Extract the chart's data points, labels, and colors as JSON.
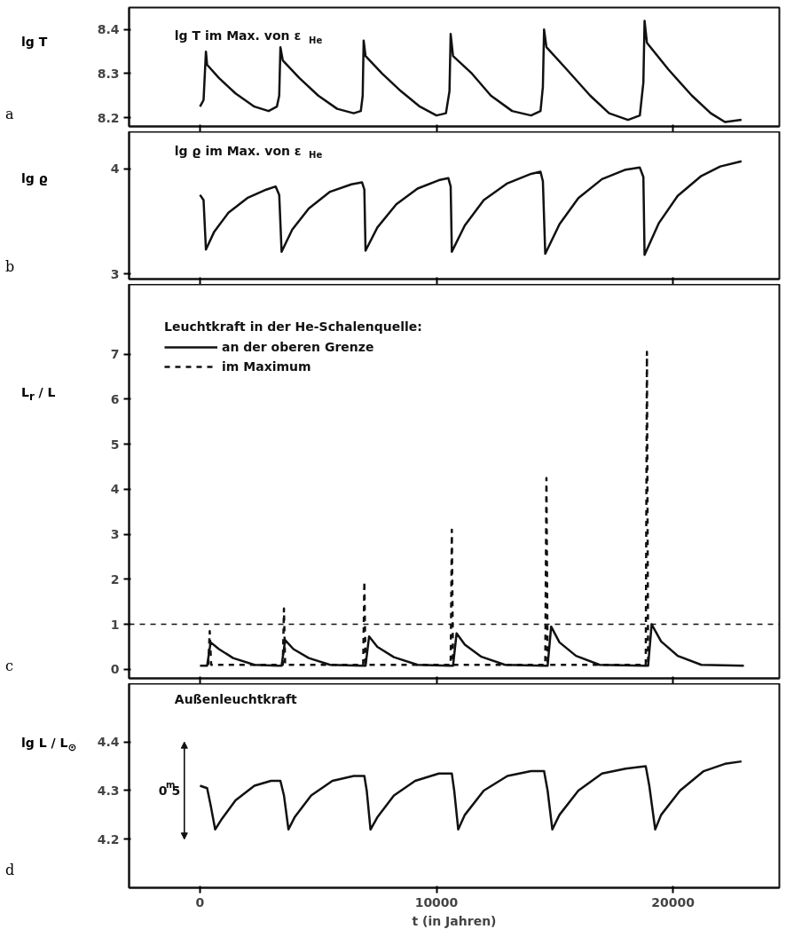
{
  "chart_data": [
    {
      "type": "line",
      "title": "lg T im Max. von ε$_{He}$",
      "ylabel": "lg T",
      "annotations": [
        "a"
      ],
      "xlim": [
        -3000,
        24500
      ],
      "ylim": [
        8.18,
        8.45
      ],
      "xticks": [
        0,
        10000,
        20000
      ],
      "yticks": [
        8.2,
        8.3,
        8.4
      ],
      "tick_labels": "y",
      "series": [
        {
          "color": "#111111",
          "x": [
            0,
            150,
            250,
            300,
            800,
            1500,
            2300,
            2900,
            3250,
            3350,
            3400,
            3500,
            4200,
            5000,
            5800,
            6500,
            6800,
            6880,
            6920,
            7000,
            7700,
            8500,
            9300,
            10000,
            10400,
            10550,
            10600,
            10700,
            11500,
            12300,
            13200,
            14000,
            14400,
            14500,
            14550,
            14650,
            15500,
            16500,
            17300,
            18100,
            18600,
            18750,
            18800,
            18900,
            19800,
            20800,
            21600,
            22200,
            22900
          ],
          "values": [
            8.225,
            8.24,
            8.35,
            8.32,
            8.29,
            8.255,
            8.225,
            8.215,
            8.225,
            8.25,
            8.36,
            8.33,
            8.29,
            8.25,
            8.22,
            8.21,
            8.215,
            8.25,
            8.375,
            8.34,
            8.3,
            8.26,
            8.225,
            8.205,
            8.21,
            8.26,
            8.39,
            8.34,
            8.3,
            8.25,
            8.215,
            8.205,
            8.215,
            8.27,
            8.4,
            8.36,
            8.31,
            8.25,
            8.21,
            8.195,
            8.205,
            8.28,
            8.42,
            8.37,
            8.31,
            8.25,
            8.21,
            8.19,
            8.195
          ]
        }
      ]
    },
    {
      "type": "line",
      "title": "lg ϱ im Max. von ε$_{He}$",
      "ylabel": "lg ϱ",
      "annotations": [
        "b"
      ],
      "xlim": [
        -3000,
        24500
      ],
      "ylim": [
        2.95,
        4.35
      ],
      "xticks": [
        0,
        10000,
        20000
      ],
      "yticks": [
        3,
        4
      ],
      "tick_labels": "y",
      "series": [
        {
          "color": "#111111",
          "x": [
            0,
            150,
            250,
            600,
            1200,
            2000,
            2800,
            3200,
            3350,
            3450,
            3900,
            4600,
            5500,
            6400,
            6850,
            6950,
            7000,
            7500,
            8300,
            9200,
            10100,
            10500,
            10600,
            10650,
            11200,
            12000,
            13000,
            14000,
            14400,
            14500,
            14600,
            15200,
            16000,
            17000,
            18000,
            18600,
            18750,
            18800,
            19400,
            20200,
            21200,
            22000,
            22900
          ],
          "values": [
            3.75,
            3.7,
            3.23,
            3.4,
            3.58,
            3.72,
            3.8,
            3.83,
            3.75,
            3.21,
            3.42,
            3.62,
            3.78,
            3.85,
            3.87,
            3.8,
            3.22,
            3.44,
            3.66,
            3.81,
            3.89,
            3.91,
            3.83,
            3.21,
            3.46,
            3.7,
            3.86,
            3.95,
            3.97,
            3.88,
            3.19,
            3.47,
            3.72,
            3.9,
            3.99,
            4.01,
            3.92,
            3.18,
            3.48,
            3.74,
            3.93,
            4.02,
            4.07
          ]
        }
      ]
    },
    {
      "type": "line",
      "ylabel": "L$_{r}$ / L",
      "annotations": [
        "c"
      ],
      "legend_title": "Leuchtkraft in der He-Schalenquelle:",
      "legend": "top left",
      "xlim": [
        -3000,
        24500
      ],
      "ylim": [
        -0.2,
        8.55
      ],
      "xticks": [
        0,
        10000,
        20000
      ],
      "yticks": [
        0,
        1,
        2,
        3,
        4,
        5,
        6,
        7
      ],
      "tick_labels": "y",
      "ref_lines": [
        {
          "axis": "y",
          "value": 1,
          "line_style": "dashed",
          "color": "#111111"
        }
      ],
      "series": [
        {
          "name": "an der oberen Grenze",
          "color": "#111111",
          "line_style": "solid",
          "x": [
            0,
            300,
            450,
            800,
            1400,
            2300,
            3300,
            3450,
            3600,
            3950,
            4600,
            5500,
            6850,
            7000,
            7150,
            7500,
            8200,
            9200,
            10550,
            10700,
            10850,
            11200,
            11900,
            12900,
            14550,
            14700,
            14850,
            15200,
            15900,
            16900,
            18800,
            18950,
            19100,
            19500,
            20200,
            21200,
            23000
          ],
          "values": [
            0.08,
            0.08,
            0.6,
            0.45,
            0.25,
            0.1,
            0.08,
            0.08,
            0.65,
            0.45,
            0.25,
            0.1,
            0.08,
            0.08,
            0.73,
            0.5,
            0.27,
            0.1,
            0.08,
            0.08,
            0.8,
            0.55,
            0.28,
            0.1,
            0.08,
            0.08,
            0.95,
            0.6,
            0.3,
            0.1,
            0.08,
            0.08,
            1.0,
            0.62,
            0.3,
            0.1,
            0.08
          ]
        },
        {
          "name": "im Maximum",
          "color": "#111111",
          "line_style": "dashed",
          "x": [
            350,
            410,
            470,
            3500,
            3550,
            3600,
            6900,
            6950,
            7000,
            10600,
            10650,
            10700,
            14600,
            14650,
            14700,
            18850,
            18900,
            18950
          ],
          "values": [
            0.1,
            0.85,
            0.1,
            0.1,
            1.35,
            0.1,
            0.1,
            1.95,
            0.1,
            0.1,
            3.1,
            0.1,
            0.1,
            4.25,
            0.1,
            0.1,
            7.05,
            0.1
          ]
        }
      ]
    },
    {
      "type": "line",
      "title": "Außenleuchtkraft",
      "ylabel": "lg L / L$_{⊙}$",
      "xlabel": "t (in Jahren)",
      "xlim": [
        -3000,
        24500
      ],
      "ylim": [
        4.1,
        4.52
      ],
      "xticks": [
        0,
        10000,
        20000
      ],
      "yticks": [
        4.2,
        4.3,
        4.4
      ],
      "annotations": [
        "d",
        "0$^{m}$5"
      ],
      "series": [
        {
          "color": "#111111",
          "x": [
            0,
            300,
            450,
            640,
            900,
            1500,
            2300,
            3000,
            3400,
            3550,
            3740,
            4000,
            4700,
            5600,
            6500,
            6950,
            7050,
            7210,
            7500,
            8200,
            9100,
            10100,
            10650,
            10750,
            10920,
            11200,
            12000,
            13000,
            14000,
            14550,
            14700,
            14900,
            15200,
            16000,
            17000,
            18000,
            18850,
            19000,
            19250,
            19500,
            20300,
            21300,
            22200,
            22900
          ],
          "values": [
            4.31,
            4.305,
            4.27,
            4.22,
            4.24,
            4.28,
            4.31,
            4.32,
            4.32,
            4.29,
            4.22,
            4.245,
            4.29,
            4.32,
            4.33,
            4.33,
            4.3,
            4.22,
            4.245,
            4.29,
            4.32,
            4.335,
            4.335,
            4.3,
            4.22,
            4.25,
            4.3,
            4.33,
            4.34,
            4.34,
            4.3,
            4.22,
            4.25,
            4.3,
            4.335,
            4.345,
            4.35,
            4.31,
            4.22,
            4.25,
            4.3,
            4.34,
            4.355,
            4.36
          ]
        }
      ]
    }
  ]
}
